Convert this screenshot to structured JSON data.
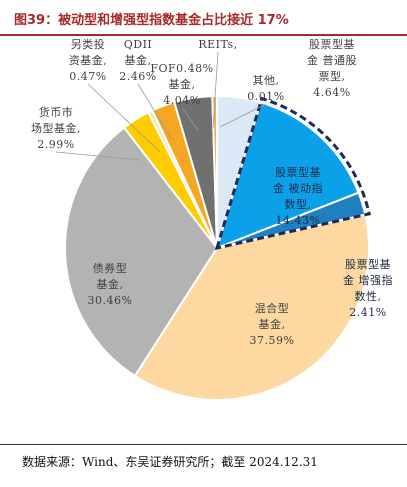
{
  "figure_title": "图39：被动型和增强型指数基金占比接近 17%",
  "source_note": "数据来源：Wind、东吴证券研究所；截至 2024.12.31",
  "chart_data": {
    "type": "pie",
    "title": "图39：被动型和增强型指数基金占比接近 17%",
    "slices": [
      {
        "name": "股票型基金 普通股票型",
        "value": 4.64,
        "label_lines": [
          "股票型基",
          "金 普通股",
          "票型,",
          "4.64%"
        ],
        "color": "#dbe9f6",
        "text_color": "#3f3f3f",
        "highlight": false
      },
      {
        "name": "股票型基金 被动指数型",
        "value": 14.43,
        "label_lines": [
          "股票型基",
          "金 被动指",
          "数型,",
          "14.43%"
        ],
        "color": "#0aa1e9",
        "text_color": "#1f2a44",
        "highlight": true
      },
      {
        "name": "股票型基金 增强指数性",
        "value": 2.41,
        "label_lines": [
          "股票型基",
          "金 增强指",
          "数性,",
          "2.41%"
        ],
        "color": "#1f7fbf",
        "text_color": "#1f2a44",
        "highlight": true
      },
      {
        "name": "混合型基金",
        "value": 37.59,
        "label_lines": [
          "混合型",
          "基金,",
          "37.59%"
        ],
        "color": "#fdd8a0",
        "text_color": "#3f3f3f",
        "highlight": false
      },
      {
        "name": "债券型基金",
        "value": 30.46,
        "label_lines": [
          "债券型",
          "基金,",
          "30.46%"
        ],
        "color": "#b3b3b3",
        "text_color": "#3f3f3f",
        "highlight": false
      },
      {
        "name": "货币市场型基金",
        "value": 2.99,
        "label_lines": [
          "货币市",
          "场型基金,",
          "2.99%"
        ],
        "color": "#ffcc00",
        "text_color": "#3f3f3f",
        "highlight": false
      },
      {
        "name": "另类投资基金",
        "value": 0.47,
        "label_lines": [
          "另类投",
          "资基金,",
          "0.47%"
        ],
        "color": "#f2e6b3",
        "text_color": "#3f3f3f",
        "highlight": false
      },
      {
        "name": "QDII基金",
        "value": 2.46,
        "label_lines": [
          "QDII",
          "基金,",
          "2.46%"
        ],
        "color": "#f5a623",
        "text_color": "#3f3f3f",
        "highlight": false
      },
      {
        "name": "FOF基金",
        "value": 4.04,
        "label_lines": [
          "FOF0.48%",
          "基金,",
          "4.04%"
        ],
        "color": "#707070",
        "text_color": "#3f3f3f",
        "highlight": false
      },
      {
        "name": "REITs",
        "value": 0.48,
        "label_lines": [
          "REITs,"
        ],
        "color": "#e8a33c",
        "text_color": "#3f3f3f",
        "highlight": false
      },
      {
        "name": "其他",
        "value": 0.01,
        "label_lines": [
          "其他,",
          "0.01%"
        ],
        "color": "#9e9e9e",
        "text_color": "#3f3f3f",
        "highlight": false
      }
    ]
  }
}
